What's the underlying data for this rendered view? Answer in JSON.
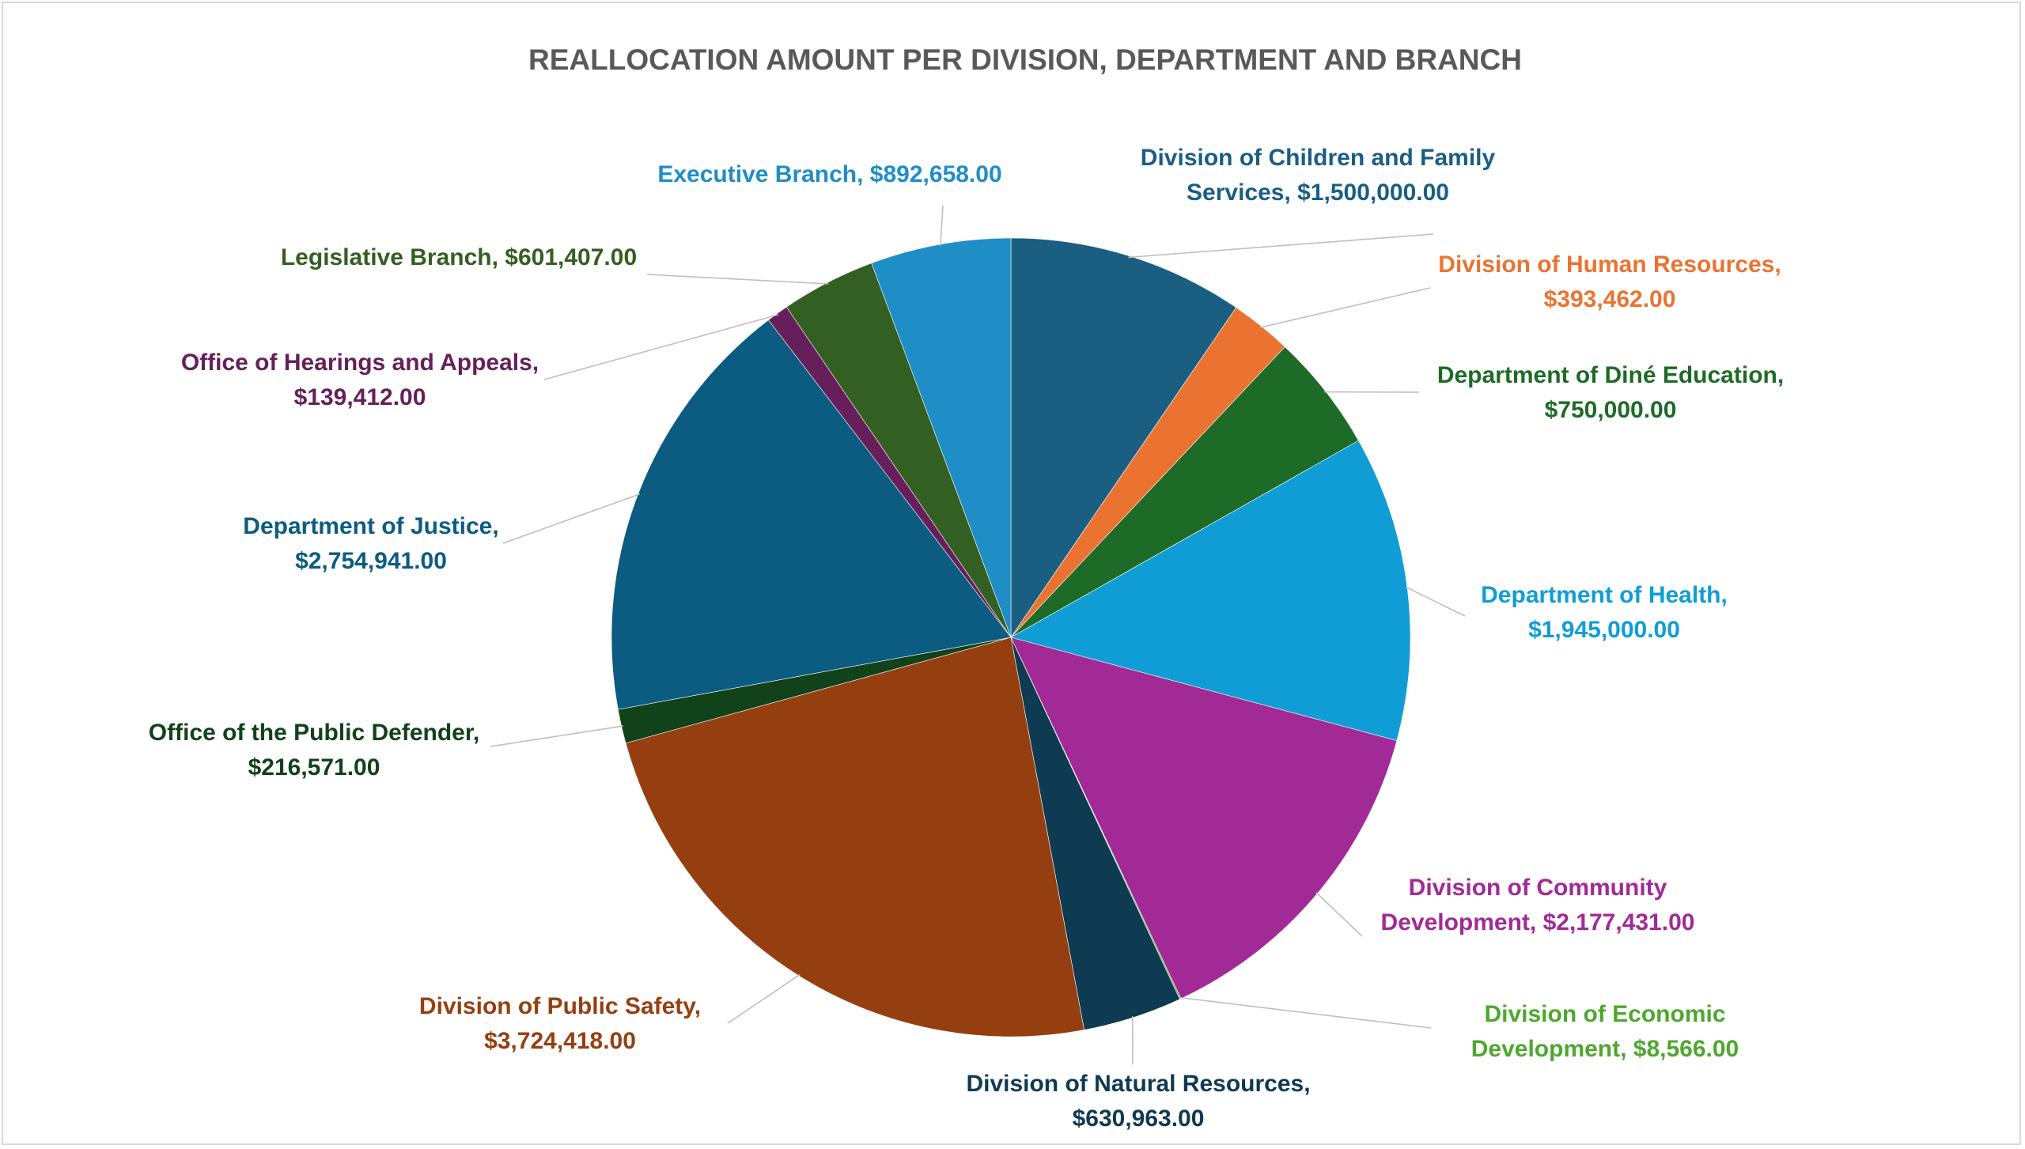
{
  "chart_data": {
    "type": "pie",
    "title": "REALLOCATION AMOUNT PER DIVISION, DEPARTMENT AND BRANCH",
    "slices": [
      {
        "name": "Division of Children and Family Services",
        "value": 1500000.0,
        "label": "$1,500,000.00",
        "color": "#1a5e82"
      },
      {
        "name": "Division of Human Resources",
        "value": 393462.0,
        "label": "$393,462.00",
        "color": "#ea7332"
      },
      {
        "name": "Department of Diné Education",
        "value": 750000.0,
        "label": "$750,000.00",
        "color": "#1d6b26"
      },
      {
        "name": "Department of Health",
        "value": 1945000.0,
        "label": "$1,945,000.00",
        "color": "#109dd6"
      },
      {
        "name": "Division of Community Development",
        "value": 2177431.0,
        "label": "$2,177,431.00",
        "color": "#a12a97"
      },
      {
        "name": "Division of Economic Development",
        "value": 8566.0,
        "label": "$8,566.00",
        "color": "#4ea72e"
      },
      {
        "name": "Division of Natural Resources",
        "value": 630963.0,
        "label": "$630,963.00",
        "color": "#0e3a52"
      },
      {
        "name": "Division of Public Safety",
        "value": 3724418.0,
        "label": "$3,724,418.00",
        "color": "#953f11"
      },
      {
        "name": "Office of the Public Defender",
        "value": 216571.0,
        "label": "$216,571.00",
        "color": "#11421a"
      },
      {
        "name": "Department of Justice",
        "value": 2754941.0,
        "label": "$2,754,941.00",
        "color": "#0b5c80"
      },
      {
        "name": "Office of Hearings and Appeals",
        "value": 139412.0,
        "label": "$139,412.00",
        "color": "#661f5b"
      },
      {
        "name": "Legislative Branch",
        "value": 601407.0,
        "label": "$601,407.00",
        "color": "#335f22"
      },
      {
        "name": "Executive Branch",
        "value": 892658.0,
        "label": "$892,658.00",
        "color": "#1f8ec6"
      }
    ]
  }
}
